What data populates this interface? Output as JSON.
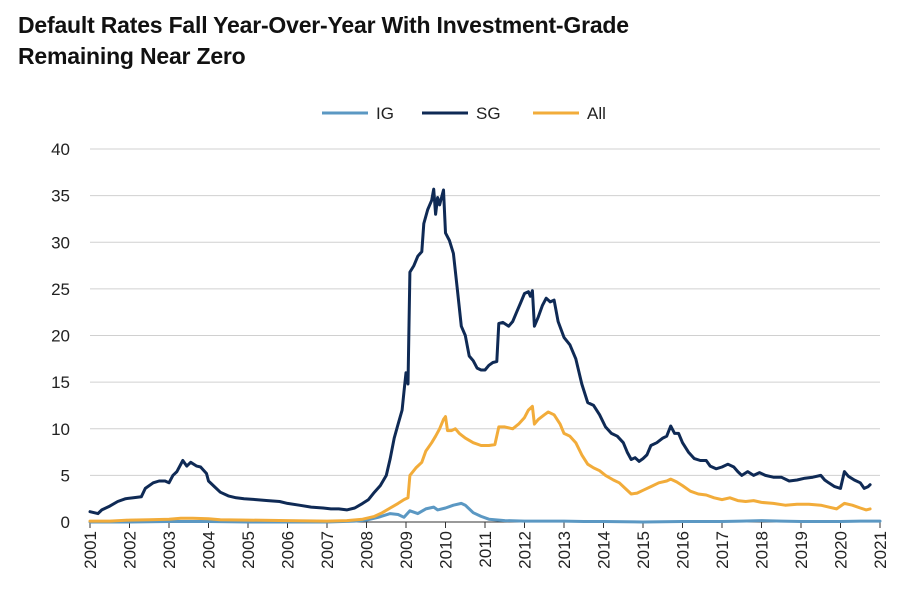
{
  "chart_data": {
    "type": "line",
    "title_lines": [
      "Default Rates Fall Year-Over-Year With Investment-Grade",
      "Remaining Near Zero"
    ],
    "xlabel": "",
    "ylabel": "",
    "xlim": [
      2001,
      2021
    ],
    "ylim": [
      0,
      40
    ],
    "yticks": [
      0,
      5,
      10,
      15,
      20,
      25,
      30,
      35,
      40
    ],
    "xticks": [
      "2001",
      "2002",
      "2003",
      "2004",
      "2005",
      "2006",
      "2007",
      "2008",
      "2009",
      "2010",
      "2011",
      "2012",
      "2013",
      "2014",
      "2015",
      "2016",
      "2017",
      "2018",
      "2019",
      "2020",
      "2021"
    ],
    "grid": "horizontal",
    "legend_position": "top-center",
    "series": [
      {
        "name": "IG",
        "color": "#5b98c3",
        "points": [
          [
            2001.0,
            0.0
          ],
          [
            2002.0,
            0.0
          ],
          [
            2003.0,
            0.05
          ],
          [
            2004.0,
            0.05
          ],
          [
            2005.0,
            0.0
          ],
          [
            2006.0,
            0.0
          ],
          [
            2007.0,
            0.0
          ],
          [
            2007.7,
            0.1
          ],
          [
            2008.0,
            0.2
          ],
          [
            2008.3,
            0.5
          ],
          [
            2008.6,
            0.9
          ],
          [
            2008.8,
            0.8
          ],
          [
            2008.95,
            0.5
          ],
          [
            2009.1,
            1.2
          ],
          [
            2009.3,
            0.9
          ],
          [
            2009.5,
            1.4
          ],
          [
            2009.7,
            1.6
          ],
          [
            2009.8,
            1.3
          ],
          [
            2010.0,
            1.5
          ],
          [
            2010.2,
            1.8
          ],
          [
            2010.4,
            2.0
          ],
          [
            2010.5,
            1.8
          ],
          [
            2010.7,
            1.0
          ],
          [
            2010.9,
            0.6
          ],
          [
            2011.1,
            0.3
          ],
          [
            2011.5,
            0.15
          ],
          [
            2012.0,
            0.1
          ],
          [
            2012.5,
            0.1
          ],
          [
            2013.0,
            0.1
          ],
          [
            2013.5,
            0.05
          ],
          [
            2014.0,
            0.05
          ],
          [
            2015.0,
            0.0
          ],
          [
            2016.0,
            0.05
          ],
          [
            2017.0,
            0.05
          ],
          [
            2017.5,
            0.1
          ],
          [
            2018.0,
            0.15
          ],
          [
            2018.5,
            0.1
          ],
          [
            2019.0,
            0.05
          ],
          [
            2020.0,
            0.05
          ],
          [
            2020.5,
            0.1
          ],
          [
            2021.0,
            0.1
          ]
        ]
      },
      {
        "name": "SG",
        "color": "#0f2a55",
        "points": [
          [
            2001.0,
            1.1
          ],
          [
            2001.2,
            0.9
          ],
          [
            2001.3,
            1.3
          ],
          [
            2001.5,
            1.7
          ],
          [
            2001.7,
            2.2
          ],
          [
            2001.9,
            2.5
          ],
          [
            2002.1,
            2.6
          ],
          [
            2002.3,
            2.7
          ],
          [
            2002.4,
            3.6
          ],
          [
            2002.6,
            4.2
          ],
          [
            2002.75,
            4.4
          ],
          [
            2002.9,
            4.4
          ],
          [
            2003.0,
            4.2
          ],
          [
            2003.1,
            5.0
          ],
          [
            2003.2,
            5.4
          ],
          [
            2003.35,
            6.6
          ],
          [
            2003.45,
            6.0
          ],
          [
            2003.55,
            6.4
          ],
          [
            2003.7,
            6.0
          ],
          [
            2003.8,
            5.9
          ],
          [
            2003.95,
            5.2
          ],
          [
            2004.0,
            4.4
          ],
          [
            2004.15,
            3.8
          ],
          [
            2004.3,
            3.2
          ],
          [
            2004.5,
            2.8
          ],
          [
            2004.7,
            2.6
          ],
          [
            2004.9,
            2.5
          ],
          [
            2005.2,
            2.4
          ],
          [
            2005.5,
            2.3
          ],
          [
            2005.8,
            2.2
          ],
          [
            2006.0,
            2.0
          ],
          [
            2006.3,
            1.8
          ],
          [
            2006.6,
            1.6
          ],
          [
            2006.9,
            1.5
          ],
          [
            2007.1,
            1.4
          ],
          [
            2007.3,
            1.4
          ],
          [
            2007.5,
            1.3
          ],
          [
            2007.7,
            1.5
          ],
          [
            2007.9,
            2.0
          ],
          [
            2008.05,
            2.4
          ],
          [
            2008.2,
            3.2
          ],
          [
            2008.35,
            3.9
          ],
          [
            2008.5,
            5.0
          ],
          [
            2008.6,
            6.8
          ],
          [
            2008.7,
            9.0
          ],
          [
            2008.8,
            10.5
          ],
          [
            2008.9,
            12.0
          ],
          [
            2008.95,
            14.0
          ],
          [
            2009.0,
            16.0
          ],
          [
            2009.05,
            14.8
          ],
          [
            2009.1,
            26.8
          ],
          [
            2009.2,
            27.5
          ],
          [
            2009.3,
            28.5
          ],
          [
            2009.4,
            29.0
          ],
          [
            2009.45,
            32.0
          ],
          [
            2009.55,
            33.5
          ],
          [
            2009.65,
            34.5
          ],
          [
            2009.7,
            35.7
          ],
          [
            2009.75,
            33.0
          ],
          [
            2009.8,
            34.8
          ],
          [
            2009.85,
            34.0
          ],
          [
            2009.95,
            35.6
          ],
          [
            2010.0,
            31.0
          ],
          [
            2010.1,
            30.2
          ],
          [
            2010.2,
            28.8
          ],
          [
            2010.3,
            25.0
          ],
          [
            2010.4,
            21.0
          ],
          [
            2010.5,
            20.0
          ],
          [
            2010.6,
            17.8
          ],
          [
            2010.7,
            17.3
          ],
          [
            2010.8,
            16.5
          ],
          [
            2010.9,
            16.3
          ],
          [
            2011.0,
            16.3
          ],
          [
            2011.1,
            16.8
          ],
          [
            2011.2,
            17.1
          ],
          [
            2011.3,
            17.2
          ],
          [
            2011.35,
            21.3
          ],
          [
            2011.45,
            21.4
          ],
          [
            2011.6,
            21.0
          ],
          [
            2011.7,
            21.5
          ],
          [
            2011.8,
            22.5
          ],
          [
            2011.9,
            23.5
          ],
          [
            2012.0,
            24.5
          ],
          [
            2012.1,
            24.7
          ],
          [
            2012.15,
            24.2
          ],
          [
            2012.2,
            24.8
          ],
          [
            2012.25,
            21.0
          ],
          [
            2012.35,
            22.0
          ],
          [
            2012.45,
            23.2
          ],
          [
            2012.55,
            24.0
          ],
          [
            2012.65,
            23.6
          ],
          [
            2012.75,
            23.8
          ],
          [
            2012.85,
            21.5
          ],
          [
            2013.0,
            19.8
          ],
          [
            2013.15,
            19.0
          ],
          [
            2013.3,
            17.5
          ],
          [
            2013.45,
            14.8
          ],
          [
            2013.6,
            12.8
          ],
          [
            2013.75,
            12.5
          ],
          [
            2013.9,
            11.5
          ],
          [
            2014.05,
            10.2
          ],
          [
            2014.2,
            9.5
          ],
          [
            2014.35,
            9.2
          ],
          [
            2014.5,
            8.5
          ],
          [
            2014.6,
            7.5
          ],
          [
            2014.7,
            6.7
          ],
          [
            2014.8,
            6.9
          ],
          [
            2014.9,
            6.5
          ],
          [
            2015.0,
            6.8
          ],
          [
            2015.1,
            7.2
          ],
          [
            2015.2,
            8.2
          ],
          [
            2015.35,
            8.5
          ],
          [
            2015.5,
            9.0
          ],
          [
            2015.6,
            9.2
          ],
          [
            2015.7,
            10.3
          ],
          [
            2015.8,
            9.5
          ],
          [
            2015.9,
            9.5
          ],
          [
            2016.0,
            8.5
          ],
          [
            2016.15,
            7.5
          ],
          [
            2016.3,
            6.8
          ],
          [
            2016.45,
            6.6
          ],
          [
            2016.6,
            6.6
          ],
          [
            2016.7,
            6.0
          ],
          [
            2016.85,
            5.7
          ],
          [
            2017.0,
            5.9
          ],
          [
            2017.15,
            6.2
          ],
          [
            2017.3,
            5.9
          ],
          [
            2017.4,
            5.4
          ],
          [
            2017.5,
            5.0
          ],
          [
            2017.65,
            5.4
          ],
          [
            2017.8,
            5.0
          ],
          [
            2017.95,
            5.3
          ],
          [
            2018.1,
            5.0
          ],
          [
            2018.3,
            4.8
          ],
          [
            2018.5,
            4.8
          ],
          [
            2018.7,
            4.4
          ],
          [
            2018.9,
            4.5
          ],
          [
            2019.1,
            4.7
          ],
          [
            2019.3,
            4.8
          ],
          [
            2019.5,
            5.0
          ],
          [
            2019.6,
            4.5
          ],
          [
            2019.7,
            4.2
          ],
          [
            2019.85,
            3.8
          ],
          [
            2020.0,
            3.6
          ],
          [
            2020.1,
            5.4
          ],
          [
            2020.2,
            4.9
          ],
          [
            2020.35,
            4.5
          ],
          [
            2020.5,
            4.2
          ],
          [
            2020.6,
            3.6
          ],
          [
            2020.7,
            3.8
          ],
          [
            2020.75,
            4.0
          ]
        ]
      },
      {
        "name": "All",
        "color": "#f2ac3a",
        "points": [
          [
            2001.0,
            0.1
          ],
          [
            2001.5,
            0.1
          ],
          [
            2002.0,
            0.2
          ],
          [
            2002.5,
            0.25
          ],
          [
            2003.0,
            0.3
          ],
          [
            2003.3,
            0.4
          ],
          [
            2003.6,
            0.4
          ],
          [
            2004.0,
            0.35
          ],
          [
            2004.3,
            0.25
          ],
          [
            2005.0,
            0.2
          ],
          [
            2006.0,
            0.15
          ],
          [
            2007.0,
            0.1
          ],
          [
            2007.5,
            0.15
          ],
          [
            2007.9,
            0.3
          ],
          [
            2008.2,
            0.6
          ],
          [
            2008.4,
            1.0
          ],
          [
            2008.6,
            1.5
          ],
          [
            2008.8,
            2.0
          ],
          [
            2008.95,
            2.4
          ],
          [
            2009.05,
            2.6
          ],
          [
            2009.1,
            5.0
          ],
          [
            2009.25,
            5.8
          ],
          [
            2009.4,
            6.4
          ],
          [
            2009.5,
            7.6
          ],
          [
            2009.65,
            8.5
          ],
          [
            2009.75,
            9.2
          ],
          [
            2009.85,
            10.0
          ],
          [
            2009.95,
            11.0
          ],
          [
            2010.0,
            11.3
          ],
          [
            2010.05,
            9.8
          ],
          [
            2010.15,
            9.8
          ],
          [
            2010.25,
            10.0
          ],
          [
            2010.35,
            9.5
          ],
          [
            2010.5,
            9.0
          ],
          [
            2010.7,
            8.5
          ],
          [
            2010.9,
            8.2
          ],
          [
            2011.1,
            8.2
          ],
          [
            2011.25,
            8.3
          ],
          [
            2011.35,
            10.2
          ],
          [
            2011.5,
            10.2
          ],
          [
            2011.7,
            10.0
          ],
          [
            2011.85,
            10.5
          ],
          [
            2012.0,
            11.2
          ],
          [
            2012.1,
            12.0
          ],
          [
            2012.2,
            12.4
          ],
          [
            2012.25,
            10.5
          ],
          [
            2012.35,
            11.0
          ],
          [
            2012.5,
            11.5
          ],
          [
            2012.6,
            11.8
          ],
          [
            2012.75,
            11.5
          ],
          [
            2012.9,
            10.5
          ],
          [
            2013.0,
            9.5
          ],
          [
            2013.15,
            9.2
          ],
          [
            2013.3,
            8.5
          ],
          [
            2013.45,
            7.2
          ],
          [
            2013.6,
            6.2
          ],
          [
            2013.75,
            5.8
          ],
          [
            2013.9,
            5.5
          ],
          [
            2014.05,
            5.0
          ],
          [
            2014.25,
            4.5
          ],
          [
            2014.4,
            4.2
          ],
          [
            2014.55,
            3.6
          ],
          [
            2014.7,
            3.0
          ],
          [
            2014.85,
            3.1
          ],
          [
            2015.0,
            3.4
          ],
          [
            2015.2,
            3.8
          ],
          [
            2015.4,
            4.2
          ],
          [
            2015.6,
            4.4
          ],
          [
            2015.7,
            4.6
          ],
          [
            2015.85,
            4.3
          ],
          [
            2016.0,
            3.9
          ],
          [
            2016.2,
            3.3
          ],
          [
            2016.4,
            3.0
          ],
          [
            2016.6,
            2.9
          ],
          [
            2016.8,
            2.6
          ],
          [
            2017.0,
            2.4
          ],
          [
            2017.2,
            2.6
          ],
          [
            2017.4,
            2.3
          ],
          [
            2017.6,
            2.2
          ],
          [
            2017.8,
            2.3
          ],
          [
            2018.0,
            2.1
          ],
          [
            2018.3,
            2.0
          ],
          [
            2018.6,
            1.8
          ],
          [
            2018.9,
            1.9
          ],
          [
            2019.2,
            1.9
          ],
          [
            2019.5,
            1.8
          ],
          [
            2019.7,
            1.6
          ],
          [
            2019.9,
            1.4
          ],
          [
            2020.1,
            2.0
          ],
          [
            2020.3,
            1.8
          ],
          [
            2020.5,
            1.5
          ],
          [
            2020.65,
            1.3
          ],
          [
            2020.75,
            1.4
          ]
        ]
      }
    ]
  }
}
